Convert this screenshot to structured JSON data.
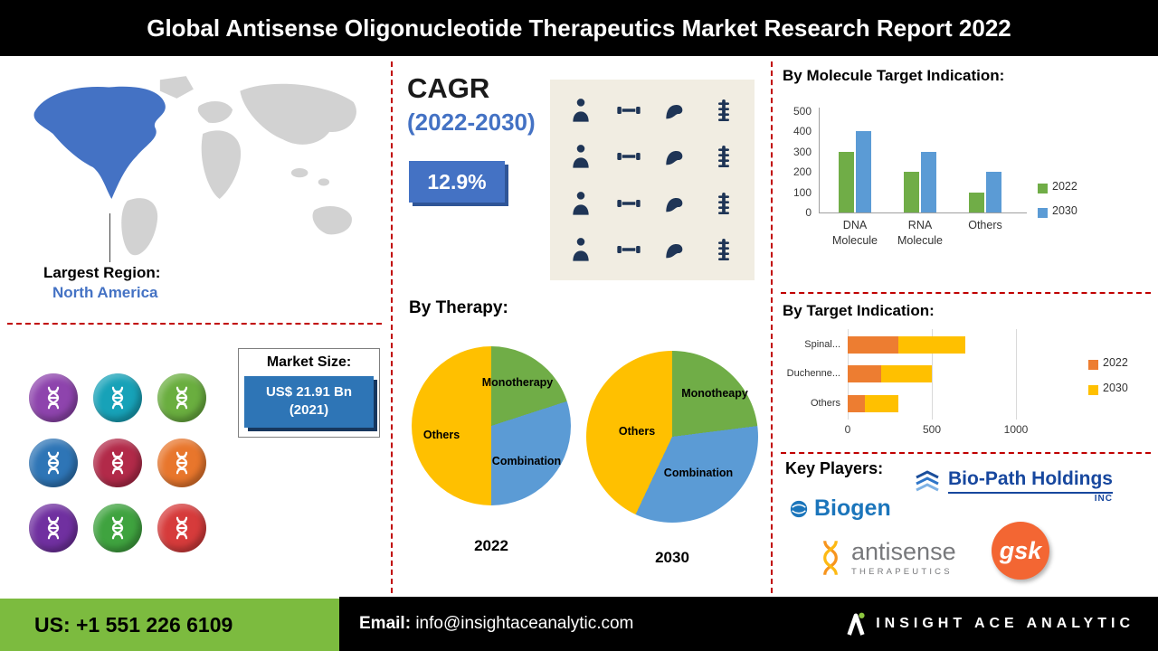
{
  "header": {
    "title": "Global Antisense Oligonucleotide Therapeutics Market Research Report 2022"
  },
  "palette": {
    "accent_blue": "#4472C4",
    "dashed_red": "#C00000",
    "footer_green": "#7CBB3F",
    "gsk_orange": "#F36633",
    "map_highlight": "#4472C4",
    "map_base": "#D2D2D2"
  },
  "left": {
    "largest_region_label": "Largest Region:",
    "largest_region_value": "North America",
    "map": {
      "name": "world-map",
      "highlight_region": "North America"
    },
    "icons": [
      {
        "name": "dna-icon-purple",
        "color": "#8E44AD"
      },
      {
        "name": "dna-icon-teal",
        "color": "#17A2B8"
      },
      {
        "name": "dna-icon-green",
        "color": "#6AAE3F"
      },
      {
        "name": "dna-icon-blue",
        "color": "#2E75B6"
      },
      {
        "name": "dna-icon-crimson",
        "color": "#B22A49"
      },
      {
        "name": "dna-icon-orange",
        "color": "#E8762C"
      },
      {
        "name": "dna-icon-violet",
        "color": "#7030A0"
      },
      {
        "name": "dna-icon-lime",
        "color": "#3FA33F"
      },
      {
        "name": "dna-icon-red",
        "color": "#D63B3B"
      }
    ],
    "market_size": {
      "label": "Market Size:",
      "value": "US$ 21.91 Bn",
      "year": "(2021)"
    }
  },
  "middle": {
    "cagr_label": "CAGR",
    "cagr_period": "(2022-2030)",
    "cagr_value": "12.9%",
    "body_image": {
      "name": "human-muscle-figures-grid",
      "rows": 4,
      "cols": 4,
      "icon_color": "#1F3556",
      "bg_color": "#F1EDE2",
      "icon_names": [
        "person-figure-icon",
        "dumbbell-icon",
        "flex-arm-icon",
        "spine-icon"
      ]
    },
    "by_therapy_label": "By Therapy:"
  },
  "right": {
    "key_players_label": "Key Players:",
    "players": {
      "biopath": {
        "name": "Bio-Path Holdings",
        "suffix": "INC"
      },
      "biogen": {
        "name": "Biogen"
      },
      "antisense": {
        "name": "antisense",
        "sub": "THERAPEUTICS"
      },
      "gsk": {
        "name": "gsk"
      }
    }
  },
  "footer": {
    "phone": "US: +1 551 226 6109",
    "email_label": "Email:",
    "email": "info@insightaceanalytic.com",
    "brand": "INSIGHT ACE ANALYTIC"
  },
  "chart_data": [
    {
      "id": "by-molecule-target-indication",
      "type": "bar",
      "title": "By Molecule Target Indication:",
      "categories": [
        "DNA Molecule",
        "RNA Molecule",
        "Others"
      ],
      "series": [
        {
          "name": "2022",
          "color": "#70AD47",
          "values": [
            300,
            200,
            100
          ]
        },
        {
          "name": "2030",
          "color": "#5B9BD5",
          "values": [
            400,
            300,
            200
          ]
        }
      ],
      "ylim": [
        0,
        500
      ],
      "yticks": [
        0,
        100,
        200,
        300,
        400,
        500
      ],
      "grid": false,
      "legend_position": "right"
    },
    {
      "id": "by-therapy-2022",
      "type": "pie",
      "title": "By Therapy:",
      "year_label": "2022",
      "slices": [
        {
          "label": "Monotherapy",
          "value": 20,
          "color": "#70AD47"
        },
        {
          "label": "Combination",
          "value": 30,
          "color": "#5B9BD5"
        },
        {
          "label": "Others",
          "value": 50,
          "color": "#FFC000"
        }
      ]
    },
    {
      "id": "by-therapy-2030",
      "type": "pie",
      "title": "By Therapy:",
      "year_label": "2030",
      "slices": [
        {
          "label": "Monotheapy",
          "value": 23,
          "color": "#70AD47"
        },
        {
          "label": "Combination",
          "value": 34,
          "color": "#5B9BD5"
        },
        {
          "label": "Others",
          "value": 43,
          "color": "#FFC000"
        }
      ]
    },
    {
      "id": "by-target-indication",
      "type": "bar",
      "orientation": "horizontal",
      "stacked": true,
      "title": "By Target Indication:",
      "categories": [
        "Spinal...",
        "Duchenne...",
        "Others"
      ],
      "series": [
        {
          "name": "2022",
          "color": "#ED7D31",
          "values": [
            300,
            200,
            100
          ]
        },
        {
          "name": "2030",
          "color": "#FFC000",
          "values": [
            400,
            300,
            200
          ]
        }
      ],
      "xlim": [
        0,
        1200
      ],
      "xticks": [
        0,
        500,
        1000
      ],
      "legend_position": "right"
    }
  ]
}
